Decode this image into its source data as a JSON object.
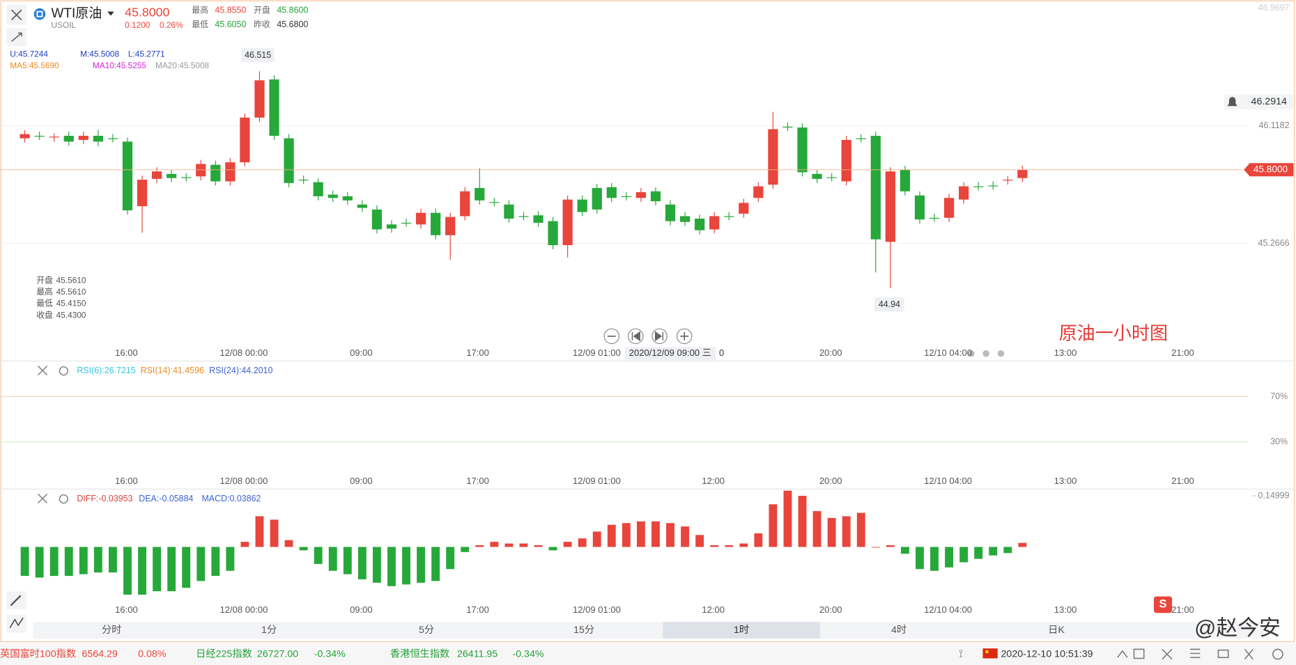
{
  "header": {
    "symbol": "WTI原油",
    "code": "USOIL",
    "price": "45.8000",
    "change": "0.1200",
    "change_pct": "0.26%",
    "stats": [
      {
        "label": "最高",
        "value": "45.8550",
        "color": "#e8453c"
      },
      {
        "label": "开盘",
        "value": "45.8600",
        "color": "#27a03a"
      },
      {
        "label": "最低",
        "value": "45.6050",
        "color": "#27a03a"
      },
      {
        "label": "昨收",
        "value": "45.6800",
        "color": "#333333"
      }
    ]
  },
  "indicators": {
    "boll": [
      {
        "text": "U:45.7244",
        "color": "#1f3fbf"
      },
      {
        "text": "M:45.5008",
        "color": "#1f3fbf"
      },
      {
        "text": "L:45.2771",
        "color": "#1f3fbf"
      }
    ],
    "ma": [
      {
        "text": "MA5:45.5690",
        "color": "#f08a24"
      },
      {
        "text": "MA10:45.5255",
        "color": "#d61fd6"
      },
      {
        "text": "MA20:45.5008",
        "color": "#999999"
      }
    ]
  },
  "chart_data": {
    "type": "candlestick",
    "title": "原油一小时图",
    "ylim": [
      44.5045,
      46.9697
    ],
    "yticks": [
      46.9697,
      46.1182,
      45.2666
    ],
    "current_price": {
      "value": 45.8,
      "label": "45.8000"
    },
    "alert_price": {
      "value": 46.2914,
      "label": "46.2914"
    },
    "high_label": "46.515",
    "low_label": "44.94",
    "up_color": "#e8453c",
    "down_color": "#27a83a",
    "candles": [
      [
        46.028,
        46.088,
        45.998,
        46.058
      ],
      [
        46.046,
        46.076,
        46.016,
        46.04
      ],
      [
        46.034,
        46.064,
        46.004,
        46.04
      ],
      [
        46.046,
        46.076,
        45.974,
        46.004
      ],
      [
        46.016,
        46.076,
        45.986,
        46.046
      ],
      [
        46.046,
        46.09,
        45.97,
        46.004
      ],
      [
        46.028,
        46.058,
        45.998,
        46.022
      ],
      [
        46.004,
        46.034,
        45.476,
        45.506
      ],
      [
        45.536,
        45.758,
        45.344,
        45.728
      ],
      [
        45.734,
        45.818,
        45.704,
        45.788
      ],
      [
        45.77,
        45.8,
        45.71,
        45.74
      ],
      [
        45.746,
        45.776,
        45.716,
        45.74
      ],
      [
        45.752,
        45.872,
        45.722,
        45.842
      ],
      [
        45.836,
        45.866,
        45.686,
        45.716
      ],
      [
        45.716,
        45.884,
        45.686,
        45.854
      ],
      [
        45.854,
        46.208,
        45.824,
        46.178
      ],
      [
        46.178,
        46.514,
        46.148,
        46.448
      ],
      [
        46.454,
        46.484,
        46.016,
        46.046
      ],
      [
        46.028,
        46.058,
        45.674,
        45.704
      ],
      [
        45.728,
        45.758,
        45.698,
        45.722
      ],
      [
        45.71,
        45.74,
        45.578,
        45.608
      ],
      [
        45.62,
        45.65,
        45.566,
        45.596
      ],
      [
        45.608,
        45.638,
        45.548,
        45.578
      ],
      [
        45.548,
        45.578,
        45.494,
        45.524
      ],
      [
        45.512,
        45.542,
        45.338,
        45.368
      ],
      [
        45.404,
        45.434,
        45.344,
        45.374
      ],
      [
        45.416,
        45.446,
        45.386,
        45.41
      ],
      [
        45.404,
        45.518,
        45.374,
        45.488
      ],
      [
        45.488,
        45.518,
        45.296,
        45.326
      ],
      [
        45.326,
        45.488,
        45.146,
        45.458
      ],
      [
        45.464,
        45.674,
        45.434,
        45.644
      ],
      [
        45.668,
        45.812,
        45.548,
        45.578
      ],
      [
        45.566,
        45.596,
        45.536,
        45.56
      ],
      [
        45.548,
        45.578,
        45.416,
        45.446
      ],
      [
        45.464,
        45.494,
        45.434,
        45.458
      ],
      [
        45.47,
        45.5,
        45.386,
        45.416
      ],
      [
        45.428,
        45.458,
        45.224,
        45.254
      ],
      [
        45.254,
        45.614,
        45.164,
        45.584
      ],
      [
        45.584,
        45.614,
        45.464,
        45.494
      ],
      [
        45.668,
        45.698,
        45.482,
        45.512
      ],
      [
        45.674,
        45.704,
        45.566,
        45.596
      ],
      [
        45.608,
        45.638,
        45.578,
        45.602
      ],
      [
        45.596,
        45.668,
        45.566,
        45.638
      ],
      [
        45.644,
        45.674,
        45.542,
        45.572
      ],
      [
        45.548,
        45.578,
        45.398,
        45.428
      ],
      [
        45.464,
        45.494,
        45.392,
        45.422
      ],
      [
        45.446,
        45.476,
        45.332,
        45.362
      ],
      [
        45.368,
        45.494,
        45.338,
        45.464
      ],
      [
        45.464,
        45.494,
        45.434,
        45.458
      ],
      [
        45.482,
        45.59,
        45.452,
        45.56
      ],
      [
        45.596,
        45.71,
        45.566,
        45.68
      ],
      [
        45.692,
        46.22,
        45.662,
        46.094
      ],
      [
        46.112,
        46.142,
        46.082,
        46.106
      ],
      [
        46.106,
        46.136,
        45.752,
        45.782
      ],
      [
        45.77,
        45.8,
        45.704,
        45.734
      ],
      [
        45.746,
        45.776,
        45.716,
        45.74
      ],
      [
        45.716,
        46.046,
        45.686,
        46.016
      ],
      [
        46.028,
        46.058,
        45.998,
        46.022
      ],
      [
        46.046,
        46.076,
        45.056,
        45.296
      ],
      [
        45.278,
        45.818,
        44.942,
        45.788
      ],
      [
        45.8,
        45.83,
        45.614,
        45.644
      ],
      [
        45.614,
        45.644,
        45.41,
        45.44
      ],
      [
        45.452,
        45.482,
        45.422,
        45.446
      ],
      [
        45.452,
        45.626,
        45.422,
        45.596
      ],
      [
        45.584,
        45.71,
        45.554,
        45.68
      ],
      [
        45.68,
        45.71,
        45.65,
        45.674
      ],
      [
        45.686,
        45.716,
        45.656,
        45.68
      ],
      [
        45.722,
        45.752,
        45.692,
        45.728
      ],
      [
        45.74,
        45.83,
        45.71,
        45.8
      ]
    ],
    "ohlc_box": [
      {
        "label": "开盘",
        "value": "45.5610"
      },
      {
        "label": "最高",
        "value": "45.5610"
      },
      {
        "label": "最低",
        "value": "45.4150"
      },
      {
        "label": "收盘",
        "value": "45.4300"
      }
    ],
    "x_labels": [
      "16:00",
      "12/08 00:00",
      "09:00",
      "17:00",
      "12/09 01:00",
      "12:00",
      "20:00",
      "12/10 04:00",
      "13:00",
      "21:00"
    ],
    "cursor_label": "2020/12/09 09:00 三",
    "cursor_value": "0"
  },
  "rsi": {
    "legend": [
      {
        "text": "RSI(6):26.7215",
        "color": "#35c6e0"
      },
      {
        "text": "RSI(14):41.4596",
        "color": "#f08a24"
      },
      {
        "text": "RSI(24):44.2010",
        "color": "#3e63d0"
      }
    ],
    "ylim": [
      0,
      100
    ],
    "yticks": [
      {
        "value": 70,
        "label": "70%"
      },
      {
        "value": 30,
        "label": "30%"
      }
    ]
  },
  "macd": {
    "legend": [
      {
        "text": "DIFF:-0.03953",
        "color": "#d8453c"
      },
      {
        "text": "DEA:-0.05884",
        "color": "#3e63d0"
      },
      {
        "text": "MACD:0.03862",
        "color": "#3e63d0"
      }
    ],
    "ylim": [
      -0.213,
      0.165
    ],
    "yticks": [
      0.14999
    ],
    "values": [
      -0.085,
      -0.09,
      -0.085,
      -0.085,
      -0.08,
      -0.075,
      -0.075,
      -0.14,
      -0.14,
      -0.13,
      -0.13,
      -0.12,
      -0.1,
      -0.085,
      -0.07,
      0.015,
      0.09,
      0.08,
      0.02,
      -0.01,
      -0.05,
      -0.07,
      -0.08,
      -0.095,
      -0.105,
      -0.115,
      -0.11,
      -0.105,
      -0.1,
      -0.065,
      -0.015,
      0.005,
      0.015,
      0.01,
      0.01,
      0.005,
      -0.01,
      0.015,
      0.025,
      0.045,
      0.065,
      0.07,
      0.075,
      0.075,
      0.07,
      0.06,
      0.035,
      0.005,
      0.005,
      0.01,
      0.04,
      0.125,
      0.165,
      0.15,
      0.105,
      0.085,
      0.09,
      0.1,
      0.0,
      0.005,
      -0.02,
      -0.065,
      -0.07,
      -0.06,
      -0.045,
      -0.035,
      -0.025,
      -0.018,
      0.012
    ]
  },
  "timeframes": {
    "items": [
      "分时",
      "1分",
      "5分",
      "15分",
      "1时",
      "4时",
      "日K"
    ],
    "active": 4
  },
  "footer": {
    "indices": [
      {
        "name": "英国富时100指数",
        "value": "6564.29",
        "change": "0.08%",
        "color": "#e8453c"
      },
      {
        "name": "日经225指数",
        "value": "26727.00",
        "change": "-0.34%",
        "color": "#27a03a"
      },
      {
        "name": "香港恒生指数",
        "value": "26411.95",
        "change": "-0.34%",
        "color": "#27a03a"
      }
    ],
    "datetime": "2020-12-10 10:51:39"
  },
  "watermark": "@赵今安"
}
